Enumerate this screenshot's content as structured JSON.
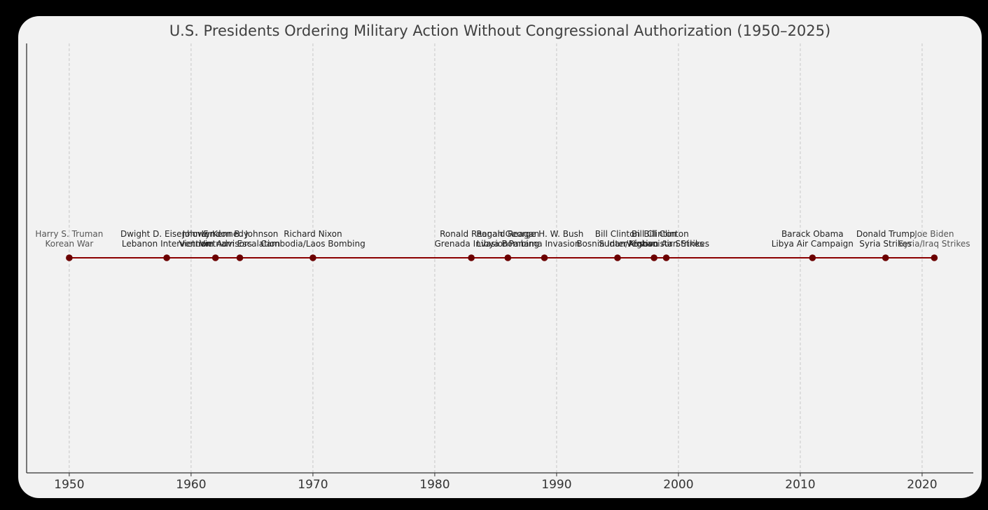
{
  "chart_data": {
    "type": "scatter",
    "title": "U.S. Presidents Ordering Military Action Without Congressional Authorization (1950–2025)",
    "xlabel": "",
    "ylabel": "",
    "xlim": [
      1946.5,
      2024.2
    ],
    "grid": "vertical dashed",
    "x_ticks": [
      1950,
      1960,
      1970,
      1980,
      1990,
      2000,
      2010,
      2020
    ],
    "colors": {
      "line": "#8b0000",
      "marker": "#6b0000",
      "background": "#f2f2f2",
      "page": "#000000"
    },
    "events": [
      {
        "year": 1950,
        "president": "Harry S. Truman",
        "action": "Korean War"
      },
      {
        "year": 1958,
        "president": "Dwight D. Eisenhower",
        "action": "Lebanon Intervention"
      },
      {
        "year": 1962,
        "president": "John F. Kennedy",
        "action": "Vietnam Advisors"
      },
      {
        "year": 1964,
        "president": "Lyndon B. Johnson",
        "action": "Vietnam Escalation"
      },
      {
        "year": 1970,
        "president": "Richard Nixon",
        "action": "Cambodia/Laos Bombing"
      },
      {
        "year": 1983,
        "president": "Ronald Reagan",
        "action": "Grenada Invasion"
      },
      {
        "year": 1986,
        "president": "Ronald Reagan",
        "action": "Libya Bombing"
      },
      {
        "year": 1989,
        "president": "George H. W. Bush",
        "action": "Panama Invasion"
      },
      {
        "year": 1995,
        "president": "Bill Clinton",
        "action": "Bosnia Intervention"
      },
      {
        "year": 1998,
        "president": "Bill Clinton",
        "action": "Sudan/Afghanistan Strikes"
      },
      {
        "year": 1999,
        "president": "Bill Clinton",
        "action": "Kosovo Air Strikes"
      },
      {
        "year": 2011,
        "president": "Barack Obama",
        "action": "Libya Air Campaign"
      },
      {
        "year": 2017,
        "president": "Donald Trump",
        "action": "Syria Strikes"
      },
      {
        "year": 2021,
        "president": "Joe Biden",
        "action": "Syria/Iraq Strikes"
      }
    ]
  }
}
